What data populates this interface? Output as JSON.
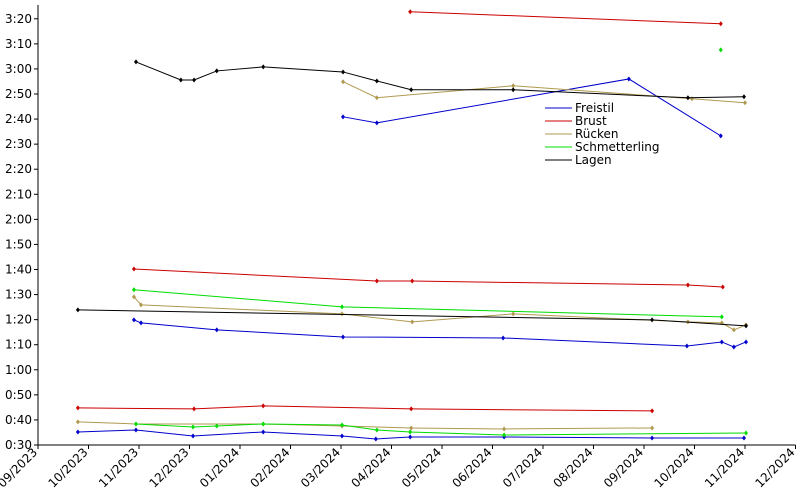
{
  "chart_data": {
    "type": "line",
    "xlim": [
      0,
      15
    ],
    "xticks": [
      {
        "value": 0,
        "label": "09/2023"
      },
      {
        "value": 1,
        "label": "10/2023"
      },
      {
        "value": 2,
        "label": "11/2023"
      },
      {
        "value": 3,
        "label": "12/2023"
      },
      {
        "value": 4,
        "label": "01/2024"
      },
      {
        "value": 5,
        "label": "02/2024"
      },
      {
        "value": 6,
        "label": "03/2024"
      },
      {
        "value": 7,
        "label": "04/2024"
      },
      {
        "value": 8,
        "label": "05/2024"
      },
      {
        "value": 9,
        "label": "06/2024"
      },
      {
        "value": 10,
        "label": "07/2024"
      },
      {
        "value": 11,
        "label": "08/2024"
      },
      {
        "value": 12,
        "label": "09/2024"
      },
      {
        "value": 13,
        "label": "10/2024"
      },
      {
        "value": 14,
        "label": "11/2024"
      },
      {
        "value": 15,
        "label": "12/2024"
      }
    ],
    "ylim": [
      30,
      205.5
    ],
    "yticks": [
      {
        "value": 30,
        "label": "0:30"
      },
      {
        "value": 40,
        "label": "0:40"
      },
      {
        "value": 50,
        "label": "0:50"
      },
      {
        "value": 60,
        "label": "1:00"
      },
      {
        "value": 70,
        "label": "1:10"
      },
      {
        "value": 80,
        "label": "1:20"
      },
      {
        "value": 90,
        "label": "1:30"
      },
      {
        "value": 100,
        "label": "1:40"
      },
      {
        "value": 110,
        "label": "1:50"
      },
      {
        "value": 120,
        "label": "2:00"
      },
      {
        "value": 130,
        "label": "2:10"
      },
      {
        "value": 140,
        "label": "2:20"
      },
      {
        "value": 150,
        "label": "2:30"
      },
      {
        "value": 160,
        "label": "2:40"
      },
      {
        "value": 170,
        "label": "2:50"
      },
      {
        "value": 180,
        "label": "3:00"
      },
      {
        "value": 190,
        "label": "3:10"
      },
      {
        "value": 200,
        "label": "3:20"
      }
    ],
    "series": [
      {
        "name": "Freistil",
        "color": "#0000cc",
        "x": [
          6.04,
          6.71,
          11.7,
          13.52,
          null,
          1.9,
          2.04,
          3.54,
          6.04,
          9.21,
          12.85,
          13.54,
          13.78,
          14.02,
          null,
          0.79,
          1.94,
          3.07,
          4.46,
          6.02,
          6.69,
          7.37,
          9.23,
          12.16,
          13.98
        ],
        "values": [
          160.9,
          158.5,
          176,
          153.3,
          null,
          79.9,
          78.7,
          75.9,
          73.1,
          72.7,
          69.5,
          71.1,
          69.1,
          71.1,
          null,
          35.2,
          36,
          33.6,
          35.2,
          33.6,
          32.4,
          33.2,
          33.2,
          32.8,
          32.8
        ]
      },
      {
        "name": "Brust",
        "color": "#cc0000",
        "x": [
          7.37,
          13.52,
          null,
          1.9,
          6.71,
          7.41,
          12.87,
          13.56,
          null,
          0.79,
          3.09,
          4.46,
          7.39,
          12.16
        ],
        "values": [
          202.8,
          198,
          null,
          100.2,
          95.4,
          95.4,
          93.8,
          93,
          null,
          44.8,
          44.4,
          45.6,
          44.4,
          43.6
        ]
      },
      {
        "name": "Rücken",
        "color": "#b09a50",
        "x": [
          6.04,
          6.71,
          9.41,
          12.95,
          14.0,
          null,
          1.9,
          2.04,
          6.02,
          7.41,
          9.41,
          12.87,
          13.54,
          13.78,
          14.02,
          null,
          0.79,
          1.94,
          4.46,
          6.02,
          7.39,
          9.23,
          12.16
        ],
        "values": [
          174.9,
          168.5,
          173.3,
          168.1,
          166.5,
          null,
          89.1,
          85.9,
          82.3,
          79.1,
          82.3,
          79.1,
          78.7,
          75.9,
          77.9,
          null,
          39.2,
          38.4,
          38.4,
          37.6,
          36.8,
          36.4,
          36.8
        ]
      },
      {
        "name": "Schmetterling",
        "color": "#00dd00",
        "x": [
          13.52,
          null,
          1.9,
          6.02,
          13.54,
          null,
          1.94,
          3.07,
          3.54,
          4.46,
          6.02,
          6.71,
          7.37,
          9.23,
          14.02
        ],
        "values": [
          187.6,
          null,
          91.9,
          85.1,
          81.1,
          null,
          38.4,
          37.2,
          37.6,
          38.4,
          38,
          36,
          35.2,
          34,
          34.8
        ]
      },
      {
        "name": "Lagen",
        "color": "#000000",
        "x": [
          1.94,
          2.83,
          3.09,
          3.54,
          4.46,
          6.04,
          6.71,
          7.39,
          9.41,
          12.87,
          13.98,
          null,
          0.79,
          12.16,
          14.02
        ],
        "values": [
          182.8,
          175.6,
          175.6,
          179.2,
          180.8,
          178.8,
          175.2,
          171.7,
          171.7,
          168.5,
          168.9,
          null,
          83.9,
          79.9,
          77.5
        ]
      }
    ]
  }
}
